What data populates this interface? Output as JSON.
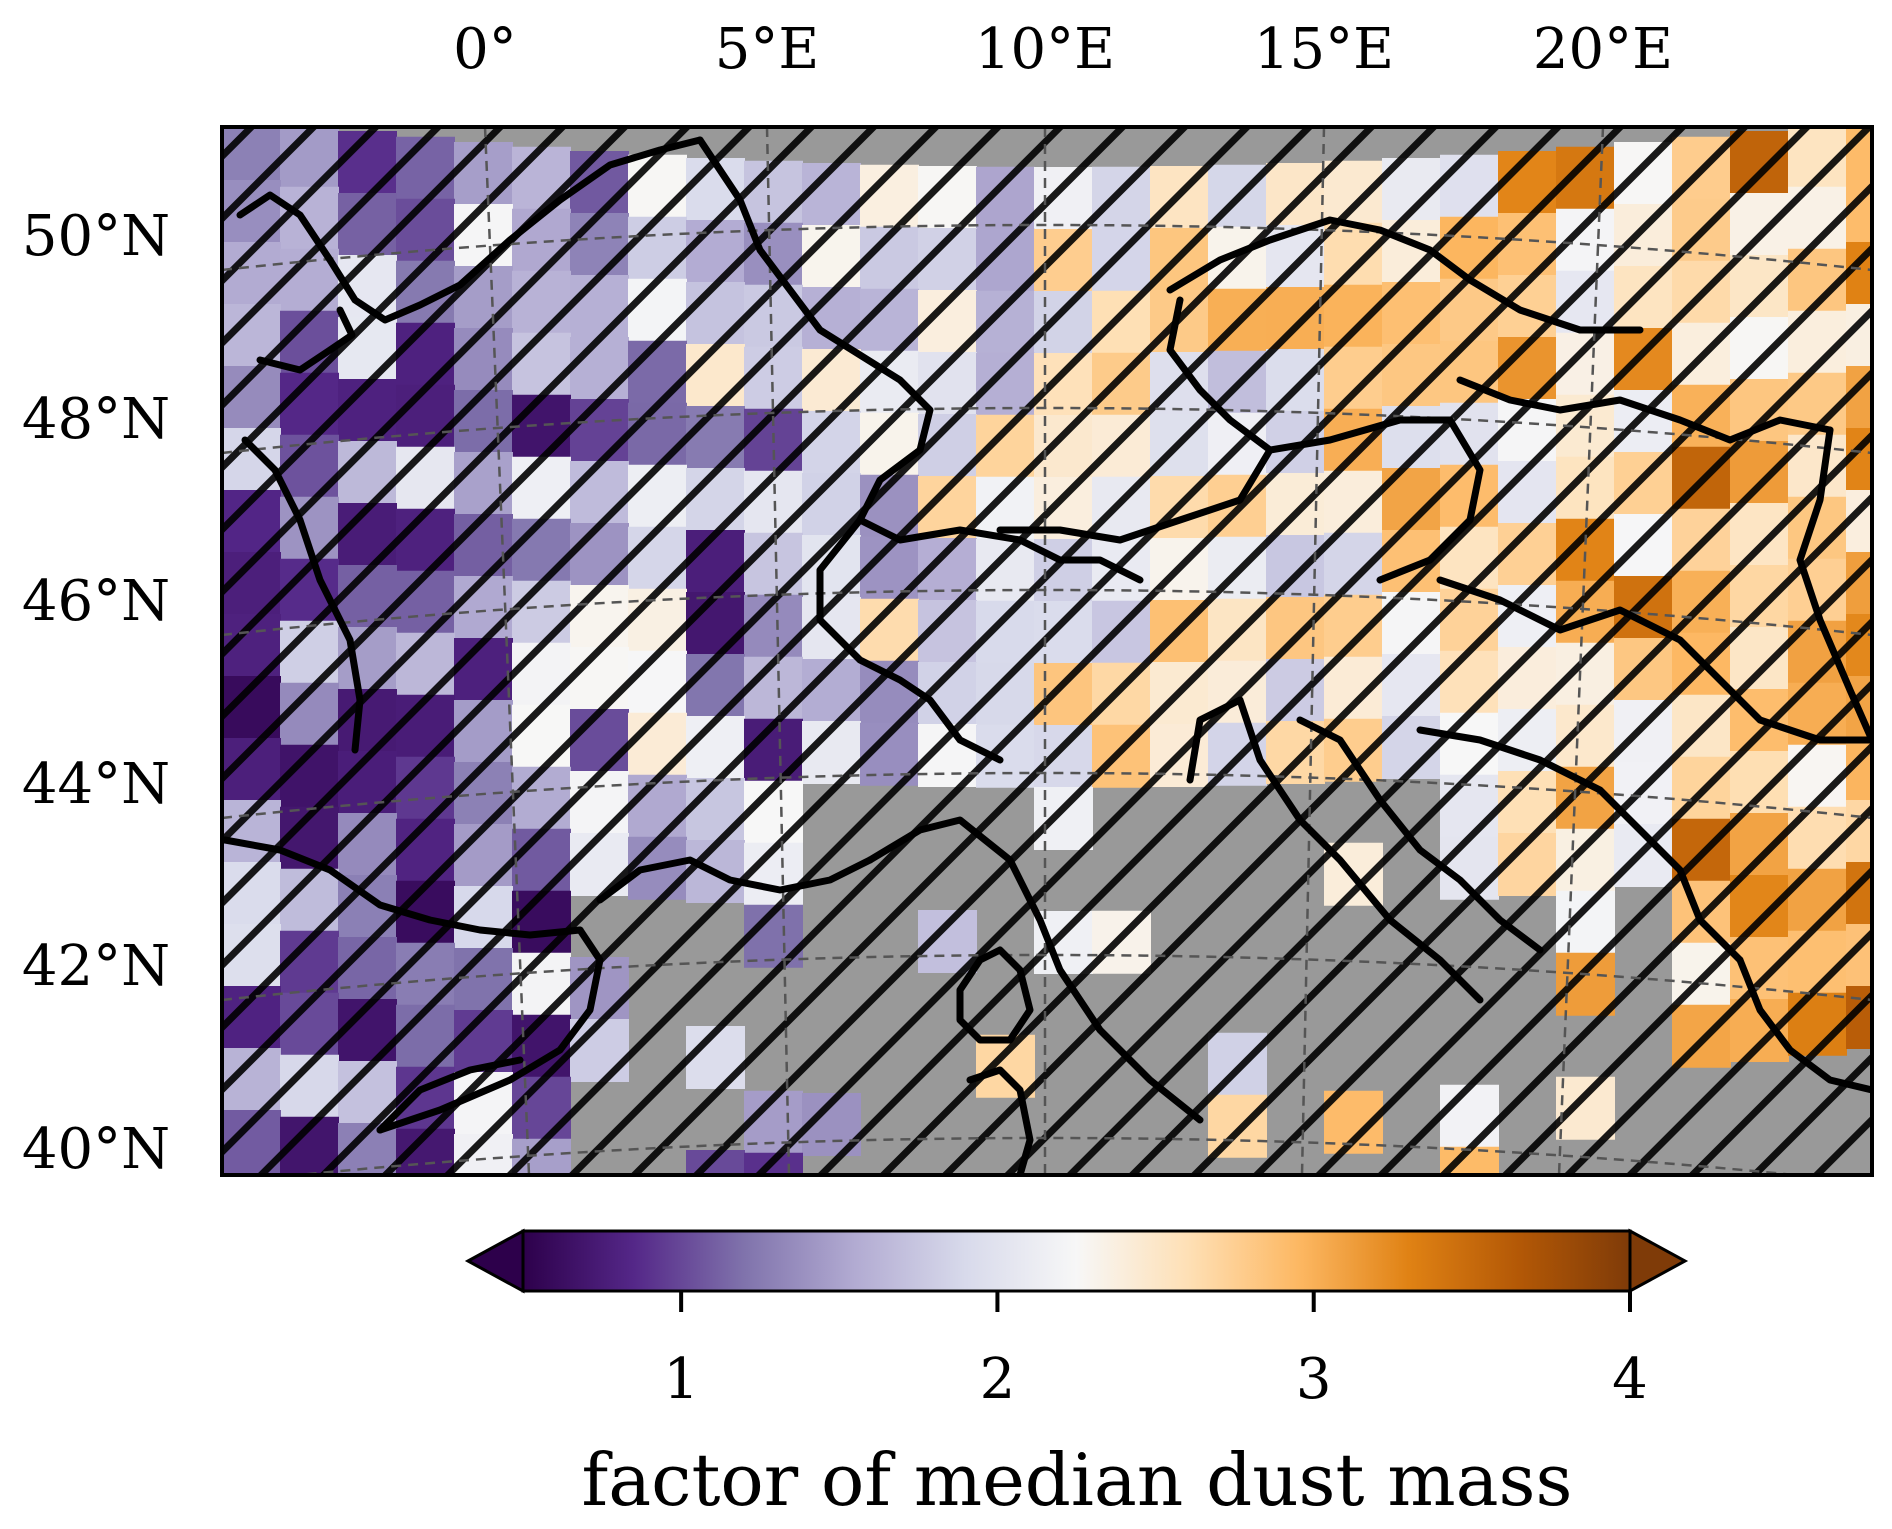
{
  "map": {
    "lon_labels": [
      "0°",
      "5°E",
      "10°E",
      "15°E",
      "20°E"
    ],
    "lat_labels": [
      "50°N",
      "48°N",
      "46°N",
      "44°N",
      "42°N",
      "40°N"
    ],
    "colors": {
      "sea_masked": "#999999",
      "hatch": "#000000",
      "border": "#000000",
      "grid": "#555555"
    }
  },
  "colorbar": {
    "label": "factor of median dust mass",
    "ticks": [
      "1",
      "2",
      "3",
      "4"
    ],
    "tick_values": [
      1,
      2,
      3,
      4
    ],
    "range": [
      0.5,
      4
    ],
    "extend": "both",
    "stops": [
      "#2d004b",
      "#542788",
      "#8073ac",
      "#b2abd2",
      "#d8daeb",
      "#f7f7f7",
      "#fee0b6",
      "#fdb863",
      "#e08214",
      "#b35806",
      "#7f3b08"
    ]
  }
}
